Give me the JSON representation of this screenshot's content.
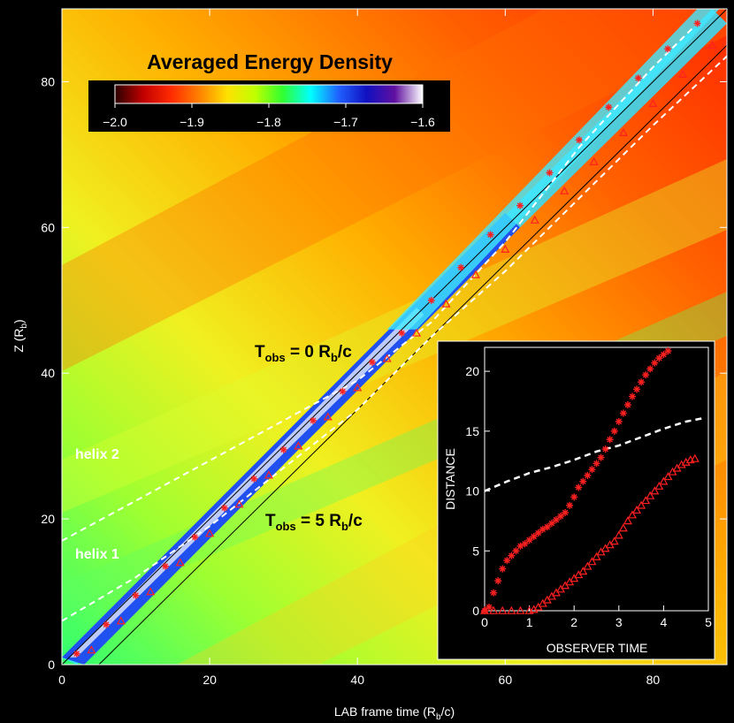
{
  "chart_data": [
    {
      "type": "heatmap",
      "title": "Averaged Energy Density",
      "xlabel": "LAB frame time (R_b/c)",
      "ylabel": "Z (R_b)",
      "xlim": [
        0,
        90
      ],
      "ylim": [
        0,
        90
      ],
      "x_ticks": [
        0,
        20,
        40,
        60,
        80
      ],
      "y_ticks": [
        0,
        20,
        40,
        60,
        80
      ],
      "x_tick_labels": [
        "0",
        "20",
        "40",
        "60",
        "80"
      ],
      "y_tick_labels": [
        "0",
        "20",
        "40",
        "60",
        "80"
      ],
      "colorbar": {
        "range": [
          -2.0,
          -1.6
        ],
        "ticks": [
          -2.0,
          -1.9,
          -1.8,
          -1.7,
          -1.6
        ],
        "tick_labels": [
          "−2.0",
          "−1.9",
          "−1.8",
          "−1.7",
          "−1.6"
        ],
        "colors": [
          "#2a0000",
          "#c00000",
          "#ff2a00",
          "#ff8000",
          "#ffe000",
          "#c0ff00",
          "#30ff30",
          "#00ffff",
          "#2060ff",
          "#1010c0",
          "#6010a0",
          "#ffffff"
        ]
      },
      "observer_lines": [
        {
          "label_main": "T",
          "label_sub": "obs",
          "label_rest": " = 0 R",
          "label_sub2": "b",
          "label_end": "/c",
          "t_obs": 0
        },
        {
          "label_main": "T",
          "label_sub": "obs",
          "label_rest": " = 5 R",
          "label_sub2": "b",
          "label_end": "/c",
          "t_obs": 5
        }
      ],
      "helix_lines": [
        {
          "label": "helix 2",
          "points": [
            [
              0,
              17
            ],
            [
              10,
              22.5
            ],
            [
              20,
              28
            ],
            [
              30,
              33.5
            ],
            [
              40,
              39
            ],
            [
              50,
              47
            ],
            [
              60,
              58
            ],
            [
              70,
              71
            ],
            [
              80,
              82
            ],
            [
              86,
              88
            ]
          ]
        },
        {
          "label": "helix 1",
          "points": [
            [
              0,
              6
            ],
            [
              10,
              12
            ],
            [
              20,
              19
            ],
            [
              30,
              27
            ],
            [
              40,
              35
            ],
            [
              50,
              45
            ],
            [
              60,
              54
            ],
            [
              70,
              64
            ],
            [
              80,
              74
            ],
            [
              90,
              83.5
            ]
          ]
        }
      ],
      "series": [
        {
          "name": "asterisks",
          "marker": "*",
          "color": "#ff2020",
          "x": [
            2,
            6,
            10,
            14,
            18,
            22,
            26,
            30,
            34,
            38,
            42,
            46,
            50,
            54,
            58,
            62,
            66,
            70,
            74,
            78,
            82,
            86
          ],
          "y": [
            1.5,
            5.5,
            9.5,
            13.5,
            17.5,
            21.5,
            25.5,
            29.5,
            33.5,
            37.5,
            41.5,
            45.5,
            50,
            54.5,
            59,
            63,
            67.5,
            72,
            76.5,
            80.5,
            84.5,
            88
          ]
        },
        {
          "name": "triangles",
          "marker": "triangle",
          "color": "#ff2020",
          "x": [
            4,
            8,
            12,
            16,
            20,
            24,
            28,
            32,
            36,
            40,
            44,
            48,
            52,
            56,
            60,
            64,
            68,
            72,
            76,
            80,
            84,
            88
          ],
          "y": [
            2,
            6,
            10,
            14,
            18,
            22,
            26,
            30,
            34,
            38,
            42,
            45.5,
            49.5,
            53.5,
            57,
            61,
            65,
            69,
            73,
            77,
            81,
            85
          ]
        }
      ]
    },
    {
      "type": "scatter",
      "xlabel": "OBSERVER TIME",
      "ylabel": "DISTANCE",
      "xlim": [
        0,
        5
      ],
      "ylim": [
        0,
        22
      ],
      "x_ticks": [
        0,
        1,
        2,
        3,
        4,
        5
      ],
      "y_ticks": [
        0,
        5,
        10,
        15,
        20
      ],
      "x_tick_labels": [
        "0",
        "1",
        "2",
        "3",
        "4",
        "5"
      ],
      "y_tick_labels": [
        "0",
        "5",
        "10",
        "15",
        "20"
      ],
      "series": [
        {
          "name": "helix",
          "style": "dashed",
          "color": "#ffffff",
          "x": [
            0,
            0.5,
            1,
            1.5,
            2,
            2.5,
            3,
            3.5,
            4,
            4.5,
            4.9
          ],
          "y": [
            10.0,
            10.8,
            11.5,
            12.0,
            12.6,
            13.3,
            13.8,
            14.5,
            15.2,
            15.8,
            16.1
          ]
        },
        {
          "name": "asterisks",
          "marker": "*",
          "color": "#ff2020",
          "x": [
            0,
            0.1,
            0.2,
            0.3,
            0.4,
            0.5,
            0.6,
            0.7,
            0.8,
            0.9,
            1.0,
            1.1,
            1.2,
            1.3,
            1.4,
            1.5,
            1.6,
            1.7,
            1.8,
            1.9,
            2.0,
            2.1,
            2.2,
            2.3,
            2.4,
            2.5,
            2.6,
            2.7,
            2.8,
            2.9,
            3.0,
            3.1,
            3.2,
            3.3,
            3.4,
            3.5,
            3.6,
            3.7,
            3.8,
            3.9,
            4.0,
            4.1
          ],
          "y": [
            0,
            0.3,
            1.5,
            2.5,
            3.5,
            4.2,
            4.6,
            5.0,
            5.4,
            5.6,
            5.9,
            6.2,
            6.5,
            6.8,
            7.0,
            7.3,
            7.6,
            7.9,
            8.2,
            8.8,
            9.5,
            10.3,
            10.8,
            11.3,
            11.8,
            12.3,
            12.8,
            13.5,
            14.3,
            15.0,
            15.8,
            16.5,
            17.2,
            17.9,
            18.5,
            19.1,
            19.7,
            20.2,
            20.7,
            21.1,
            21.4,
            21.7
          ]
        },
        {
          "name": "triangles",
          "marker": "triangle",
          "color": "#ff2020",
          "x": [
            0,
            0.2,
            0.4,
            0.6,
            0.8,
            1.0,
            1.1,
            1.2,
            1.3,
            1.4,
            1.5,
            1.6,
            1.7,
            1.8,
            1.9,
            2.0,
            2.1,
            2.2,
            2.3,
            2.4,
            2.5,
            2.6,
            2.7,
            2.8,
            2.9,
            3.0,
            3.1,
            3.2,
            3.3,
            3.4,
            3.5,
            3.6,
            3.7,
            3.8,
            3.9,
            4.0,
            4.1,
            4.2,
            4.3,
            4.4,
            4.5,
            4.6,
            4.7
          ],
          "y": [
            0,
            0,
            0,
            0,
            0,
            0,
            0.1,
            0.3,
            0.6,
            0.9,
            1.2,
            1.5,
            1.8,
            2.1,
            2.4,
            2.7,
            3.0,
            3.3,
            3.7,
            4.1,
            4.5,
            4.9,
            5.2,
            5.5,
            5.8,
            6.3,
            6.9,
            7.5,
            8.0,
            8.4,
            8.8,
            9.2,
            9.6,
            10.0,
            10.4,
            10.8,
            11.2,
            11.6,
            11.9,
            12.2,
            12.4,
            12.6,
            12.7
          ]
        }
      ]
    }
  ]
}
